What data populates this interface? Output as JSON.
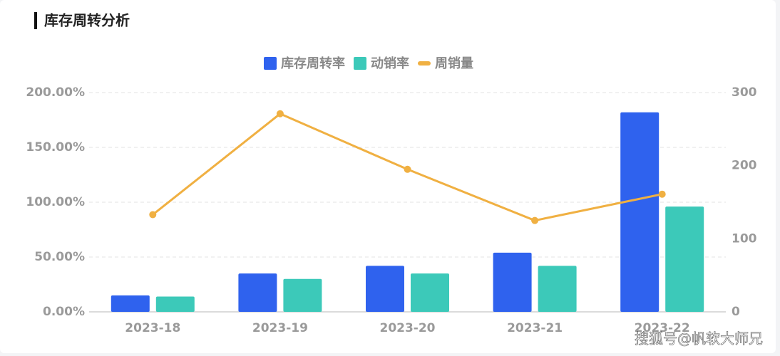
{
  "chart_data": {
    "type": "bar-line",
    "title": "库存周转分析",
    "categories": [
      "2023-18",
      "2023-19",
      "2023-20",
      "2023-21",
      "2023-22"
    ],
    "series": [
      {
        "name": "库存周转率",
        "color": "#2f62ee",
        "type": "bar",
        "values": [
          15,
          35,
          42,
          54,
          182
        ]
      },
      {
        "name": "动销率",
        "color": "#3cc9b9",
        "type": "bar",
        "values": [
          14,
          30,
          35,
          42,
          96
        ]
      },
      {
        "name": "周销量",
        "color": "#f0b042",
        "type": "line",
        "axis": "y2",
        "values": [
          133,
          271,
          195,
          125,
          161
        ]
      }
    ],
    "ylim": [
      0,
      200
    ],
    "yticks": [
      {
        "value": 0,
        "label": "0.00%"
      },
      {
        "value": 50,
        "label": "50.00%"
      },
      {
        "value": 100,
        "label": "100.00%"
      },
      {
        "value": 150,
        "label": "150.00%"
      },
      {
        "value": 200,
        "label": "200.00%"
      }
    ],
    "y2lim": [
      0,
      300
    ],
    "y2ticks": [
      0,
      100,
      200,
      300
    ],
    "grid": true,
    "legend": "top",
    "watermark": "搜狐号@帆软大师兄"
  }
}
